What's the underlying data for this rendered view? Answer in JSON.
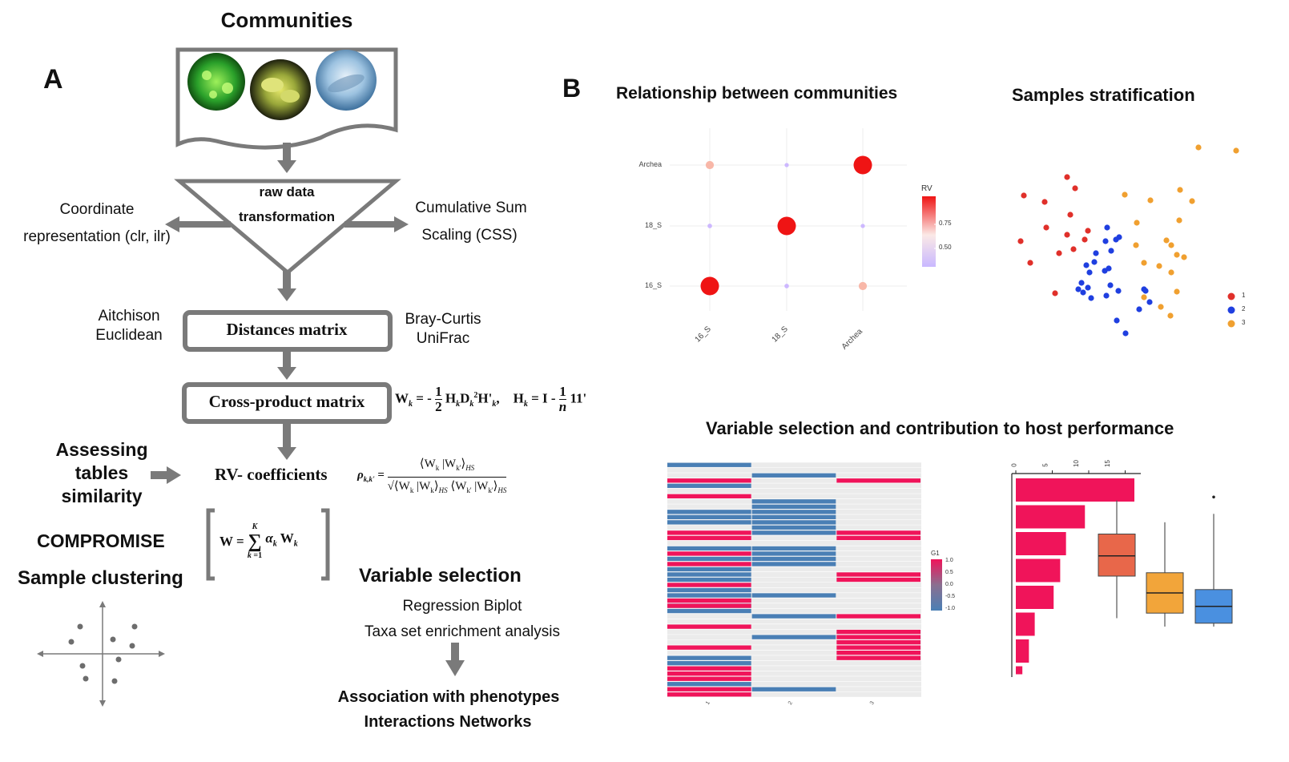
{
  "panel_a": {
    "letter": "A",
    "title": "Communities",
    "transform_box": [
      "raw data",
      "transformation"
    ],
    "left_transform": [
      "Coordinate",
      "representation (clr, ilr)"
    ],
    "right_transform": [
      "Cumulative Sum",
      "Scaling (CSS)"
    ],
    "distances_box": "Distances matrix",
    "left_distances": [
      "Aitchison",
      "Euclidean"
    ],
    "right_distances": [
      "Bray-Curtis",
      "UniFrac"
    ],
    "crossproduct_box": "Cross-product matrix",
    "assessing": [
      "Assessing",
      "tables",
      "similarity"
    ],
    "rv_label": "RV- coefficients",
    "compromise": "COMPROMISE",
    "sample_clustering": "Sample clustering",
    "variable_selection": "Variable selection",
    "vs_items": [
      "Regression Biplot",
      "Taxa set enrichment analysis"
    ],
    "outcomes": [
      "Association with phenotypes",
      "Interactions Networks"
    ]
  },
  "panel_b": {
    "letter": "B",
    "relationship_title": "Relationship between communities",
    "stratification_title": "Samples stratification",
    "variable_title": "Variable selection and contribution to host performance",
    "legend_rv": {
      "title": "RV",
      "ticks": [
        "0.75",
        "0.50"
      ]
    },
    "legend_g1": {
      "title": "G1",
      "ticks": [
        "1.0",
        "0.5",
        "0.0",
        "-0.5",
        "-1.0"
      ]
    },
    "cluster_legend": [
      "1",
      "2",
      "3"
    ],
    "heatmap_xticks": [
      "1",
      "2",
      "3"
    ],
    "bar_xticks": [
      "0",
      "5",
      "10",
      "15"
    ]
  },
  "colors": {
    "accent_pink": "#f0145a",
    "heat_blue": "#4a7fb5",
    "cluster1": "#e0302a",
    "cluster2": "#1f3fe0",
    "cluster3": "#f0a030",
    "box1": "#e8674a",
    "box2": "#f2a53a",
    "box3": "#4a90e0",
    "arrow_grey": "#7a7a7a"
  },
  "chart_data": [
    {
      "type": "scatter",
      "name": "rv-bubble-plot",
      "categories_x": [
        "16_S",
        "18_S",
        "Archea"
      ],
      "categories_y": [
        "Archea",
        "18_S",
        "16_S"
      ],
      "points": [
        {
          "x": "16_S",
          "y": "Archea",
          "rv": 0.6
        },
        {
          "x": "18_S",
          "y": "Archea",
          "rv": 0.4
        },
        {
          "x": "Archea",
          "y": "Archea",
          "rv": 1.0
        },
        {
          "x": "16_S",
          "y": "18_S",
          "rv": 0.42
        },
        {
          "x": "18_S",
          "y": "18_S",
          "rv": 1.0
        },
        {
          "x": "Archea",
          "y": "18_S",
          "rv": 0.4
        },
        {
          "x": "16_S",
          "y": "16_S",
          "rv": 1.0
        },
        {
          "x": "18_S",
          "y": "16_S",
          "rv": 0.42
        },
        {
          "x": "Archea",
          "y": "16_S",
          "rv": 0.6
        }
      ]
    },
    {
      "type": "scatter",
      "name": "samples-stratification",
      "series": [
        {
          "name": "1",
          "points": [
            [
              1332,
              221
            ],
            [
              1278,
              244
            ],
            [
              1304,
              252
            ],
            [
              1342,
              235
            ],
            [
              1336,
              268
            ],
            [
              1274,
              301
            ],
            [
              1306,
              284
            ],
            [
              1332,
              293
            ],
            [
              1354,
              299
            ],
            [
              1358,
              288
            ],
            [
              1286,
              328
            ],
            [
              1322,
              316
            ],
            [
              1340,
              311
            ],
            [
              1317,
              366
            ]
          ]
        },
        {
          "name": "2",
          "points": [
            [
              1382,
              284
            ],
            [
              1397,
              296
            ],
            [
              1393,
              299
            ],
            [
              1380,
              301
            ],
            [
              1368,
              316
            ],
            [
              1387,
              313
            ],
            [
              1356,
              331
            ],
            [
              1366,
              327
            ],
            [
              1384,
              335
            ],
            [
              1360,
              340
            ],
            [
              1379,
              338
            ],
            [
              1350,
              353
            ],
            [
              1346,
              361
            ],
            [
              1358,
              359
            ],
            [
              1352,
              365
            ],
            [
              1362,
              372
            ],
            [
              1386,
              356
            ],
            [
              1396,
              363
            ],
            [
              1381,
              369
            ],
            [
              1428,
              361
            ],
            [
              1430,
              363
            ],
            [
              1435,
              377
            ],
            [
              1422,
              386
            ],
            [
              1394,
              400
            ],
            [
              1405,
              416
            ]
          ]
        },
        {
          "name": "3",
          "points": [
            [
              1496,
              184
            ],
            [
              1543,
              188
            ],
            [
              1404,
              243
            ],
            [
              1473,
              237
            ],
            [
              1488,
              251
            ],
            [
              1436,
              250
            ],
            [
              1472,
              275
            ],
            [
              1419,
              278
            ],
            [
              1418,
              306
            ],
            [
              1456,
              300
            ],
            [
              1462,
              306
            ],
            [
              1469,
              318
            ],
            [
              1478,
              321
            ],
            [
              1428,
              328
            ],
            [
              1447,
              332
            ],
            [
              1462,
              340
            ],
            [
              1428,
              371
            ],
            [
              1469,
              364
            ],
            [
              1449,
              383
            ],
            [
              1461,
              394
            ]
          ]
        }
      ]
    },
    {
      "type": "heatmap",
      "name": "variable-heatmap",
      "columns": [
        "1",
        "2",
        "3"
      ],
      "rows": 45,
      "cells": [
        {
          "col": "1",
          "rows": [
            0,
            4,
            9,
            10,
            11,
            16,
            18,
            20,
            21,
            22,
            24,
            25,
            26,
            27,
            28,
            37,
            38,
            42
          ],
          "value": -1
        },
        {
          "col": "1",
          "rows": [
            3,
            6,
            13,
            14,
            17,
            19,
            23,
            26,
            27,
            31,
            35,
            39,
            40,
            41,
            43,
            44
          ],
          "value": 1
        },
        {
          "col": "2",
          "rows": [
            2,
            7,
            8,
            9,
            10,
            11,
            12,
            13,
            16,
            17,
            18,
            19,
            25,
            29,
            33,
            43
          ],
          "value": -1
        },
        {
          "col": "3",
          "rows": [
            3,
            13,
            14,
            21,
            22,
            29,
            32,
            33,
            34,
            35,
            36,
            37
          ],
          "value": 1
        }
      ]
    },
    {
      "type": "bar",
      "name": "contribution-bars",
      "orientation": "horizontal",
      "values": [
        16.3,
        9.5,
        6.9,
        6.1,
        5.2,
        2.6,
        1.8,
        0.9
      ],
      "xlim": [
        0,
        17
      ]
    },
    {
      "type": "box",
      "name": "host-performance-boxplot",
      "boxes": [
        {
          "median": 0.72,
          "q1": 0.6,
          "q3": 0.85,
          "min": 0.35,
          "max": 1.05
        },
        {
          "median": 0.5,
          "q1": 0.38,
          "q3": 0.62,
          "min": 0.3,
          "max": 0.92
        },
        {
          "median": 0.42,
          "q1": 0.32,
          "q3": 0.52,
          "min": 0.3,
          "max": 0.97,
          "outlier": 1.07
        }
      ]
    }
  ]
}
